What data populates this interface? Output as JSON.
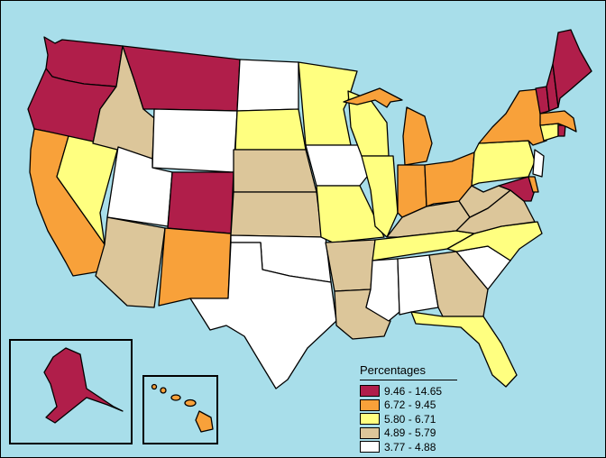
{
  "map": {
    "legend": {
      "title": "Percentages",
      "classes": [
        {
          "id": "c1",
          "label": "9.46 - 14.65",
          "color": "#B01E4A"
        },
        {
          "id": "c2",
          "label": "6.72 - 9.45",
          "color": "#F8A13A"
        },
        {
          "id": "c3",
          "label": "5.80 - 6.71",
          "color": "#FFFF80"
        },
        {
          "id": "c4",
          "label": "4.89 - 5.79",
          "color": "#DCC69A"
        },
        {
          "id": "c5",
          "label": "3.77 - 4.88",
          "color": "#FFFFFF"
        }
      ]
    },
    "ocean_color": "#A8DEEA",
    "state_classes": {
      "WA": "c1",
      "OR": "c1",
      "MT": "c1",
      "CO": "c1",
      "ME": "c1",
      "VT": "c1",
      "NH": "c1",
      "AK": "c1",
      "RI": "c1",
      "MD": "c1",
      "CA": "c2",
      "NM": "c2",
      "MI": "c2",
      "IN": "c2",
      "OH": "c2",
      "NY": "c2",
      "MA": "c2",
      "HI": "c2",
      "DE": "c2",
      "NV": "c3",
      "SD": "c3",
      "MN": "c3",
      "WI": "c3",
      "IL": "c3",
      "MO": "c3",
      "TN": "c3",
      "NC": "c3",
      "PA": "c3",
      "FL": "c3",
      "CT": "c3",
      "ID": "c4",
      "AZ": "c4",
      "NE": "c4",
      "KS": "c4",
      "AR": "c4",
      "LA": "c4",
      "GA": "c4",
      "KY": "c4",
      "VA": "c4",
      "WV": "c4",
      "UT": "c5",
      "WY": "c5",
      "ND": "c5",
      "IA": "c5",
      "TX": "c5",
      "OK": "c5",
      "MS": "c5",
      "AL": "c5",
      "SC": "c5",
      "NJ": "c5"
    }
  }
}
